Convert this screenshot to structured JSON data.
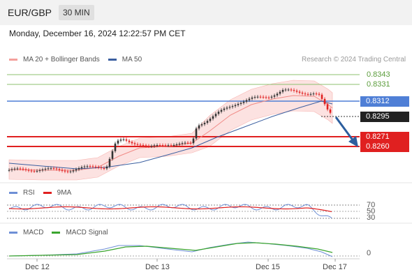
{
  "header": {
    "symbol": "EUR/GBP",
    "timeframe": "30 MIN"
  },
  "datetime": "Monday, December 16, 2024 12:22:57 PM CET",
  "copyright": "Research © 2024 Trading Central",
  "legend_main": [
    {
      "label": "MA 20 + Bollinger Bands",
      "color": "#f4a09c"
    },
    {
      "label": "MA 50",
      "color": "#3b5fa0"
    }
  ],
  "legend_rsi": [
    {
      "label": "RSI",
      "color": "#6e8fd6"
    },
    {
      "label": "9MA",
      "color": "#e02020"
    }
  ],
  "legend_macd": [
    {
      "label": "MACD",
      "color": "#6e8fd6"
    },
    {
      "label": "MACD Signal",
      "color": "#3aa52e"
    }
  ],
  "price_levels": {
    "resistance_2": "0.8343",
    "resistance_1": "0.8331",
    "pivot": "0.8312",
    "current": "0.8295",
    "support_1": "0.8271",
    "support_2": "0.8260"
  },
  "rsi_levels": {
    "upper": "70",
    "mid": "50",
    "lower": "30"
  },
  "macd_zero": "0",
  "x_axis": [
    "Dec 12",
    "Dec 13",
    "Dec 15",
    "Dec 17"
  ],
  "colors": {
    "bull_candle": "#333333",
    "bear_candle": "#e02020",
    "resistance_line": "#8dc26f",
    "pivot_line": "#4f7fd6",
    "support_line": "#e02020",
    "arrow": "#2c5e9e"
  }
}
